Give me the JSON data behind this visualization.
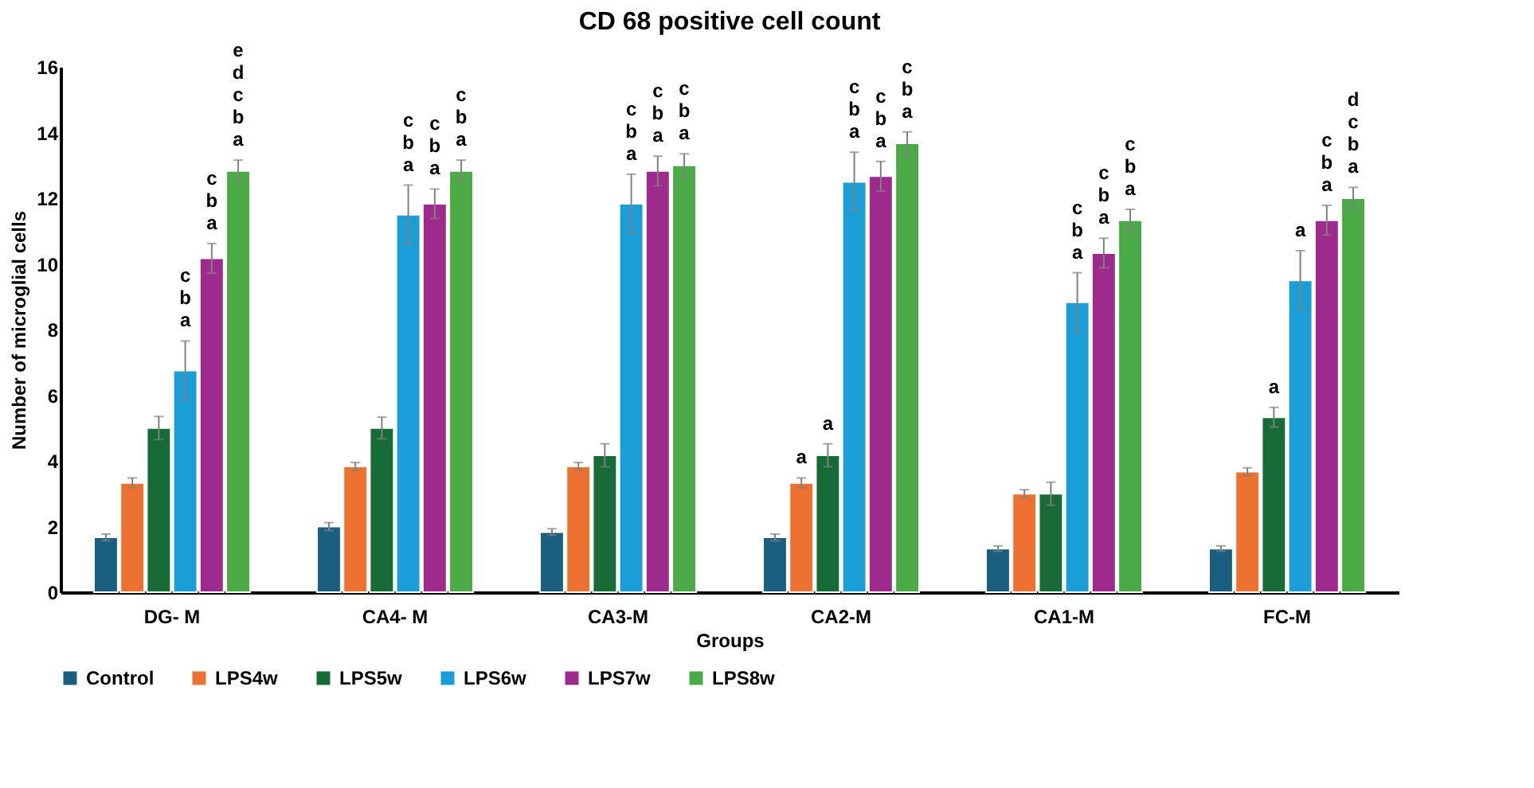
{
  "chart_data": {
    "type": "bar",
    "title": "CD 68 positive cell count",
    "xlabel": "Groups",
    "ylabel": "Number of microglial cells",
    "categories": [
      "DG- M",
      "CA4- M",
      "CA3-M",
      "CA2-M",
      "CA1-M",
      "FC-M"
    ],
    "ylim": [
      0,
      16
    ],
    "yticks": [
      0,
      2,
      4,
      6,
      8,
      10,
      12,
      14,
      16
    ],
    "grid": false,
    "legend": "bottom",
    "series": [
      {
        "name": "Control",
        "color": "#1a5e80",
        "values": [
          1.67,
          2.0,
          1.83,
          1.67,
          1.33,
          1.33
        ],
        "errors": [
          0.1,
          0.12,
          0.1,
          0.1,
          0.08,
          0.08
        ]
      },
      {
        "name": "LPS4w",
        "color": "#ed7130",
        "values": [
          3.33,
          3.83,
          3.83,
          3.33,
          3.0,
          3.67
        ],
        "errors": [
          0.15,
          0.12,
          0.12,
          0.15,
          0.12,
          0.12
        ],
        "value_labels": [
          null,
          null,
          null,
          "a",
          null,
          null
        ]
      },
      {
        "name": "LPS5w",
        "color": "#176b37",
        "values": [
          5.0,
          5.0,
          4.17,
          4.17,
          3.0,
          5.33
        ],
        "errors": [
          0.35,
          0.33,
          0.35,
          0.35,
          0.35,
          0.3
        ],
        "value_labels": [
          null,
          null,
          null,
          "a",
          null,
          "a"
        ]
      },
      {
        "name": "LPS6w",
        "color": "#1a9ed8",
        "values": [
          6.75,
          11.5,
          11.83,
          12.5,
          8.83,
          9.5
        ],
        "errors": [
          0.9,
          0.9,
          0.9,
          0.9,
          0.9,
          0.9
        ],
        "value_labels": [
          "c\nb\na",
          "c\nb\na",
          "c\nb\na",
          "c\nb\na",
          "c\nb\na",
          "a"
        ]
      },
      {
        "name": "LPS7w",
        "color": "#9e2a8e",
        "values": [
          10.17,
          11.83,
          12.83,
          12.67,
          10.33,
          11.33
        ],
        "errors": [
          0.45,
          0.45,
          0.45,
          0.45,
          0.45,
          0.45
        ],
        "value_labels": [
          "c\nb\na",
          "c\nb\na",
          "c\nb\na",
          "c\nb\na",
          "c\nb\na",
          "c\nb\na"
        ]
      },
      {
        "name": "LPS8w",
        "color": "#4aab46",
        "values": [
          12.83,
          12.83,
          13.0,
          13.67,
          11.33,
          12.0
        ],
        "errors": [
          0.33,
          0.33,
          0.35,
          0.35,
          0.33,
          0.33
        ],
        "value_labels": [
          "e\nd\nc\nb\na",
          "c\nb\na",
          "c\nb\na",
          "c\nb\na",
          "c\nb\na",
          "d\nc\nb\na"
        ]
      }
    ]
  }
}
